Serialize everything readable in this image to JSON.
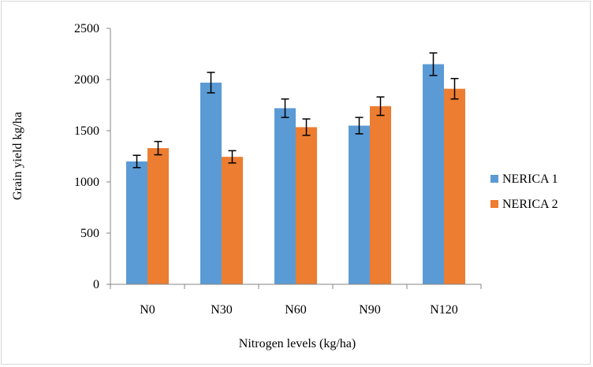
{
  "chart_data": {
    "type": "bar",
    "title": "",
    "xlabel": "Nitrogen levels (kg/ha)",
    "ylabel": "Grain yield kg/ha",
    "ylim": [
      0,
      2500
    ],
    "yticks": [
      "0",
      "500",
      "1000",
      "1500",
      "2000",
      "2500"
    ],
    "categories": [
      "N0",
      "N30",
      "N60",
      "N90",
      "N120"
    ],
    "series": [
      {
        "name": "NERICA 1",
        "color": "#5B9BD5",
        "values": [
          1200,
          1970,
          1720,
          1550,
          2150
        ],
        "errors": [
          60,
          100,
          90,
          80,
          110
        ]
      },
      {
        "name": "NERICA 2",
        "color": "#ED7D31",
        "values": [
          1330,
          1245,
          1535,
          1740,
          1910
        ],
        "errors": [
          65,
          60,
          80,
          90,
          100
        ]
      }
    ],
    "grid": false,
    "legend": "right"
  }
}
